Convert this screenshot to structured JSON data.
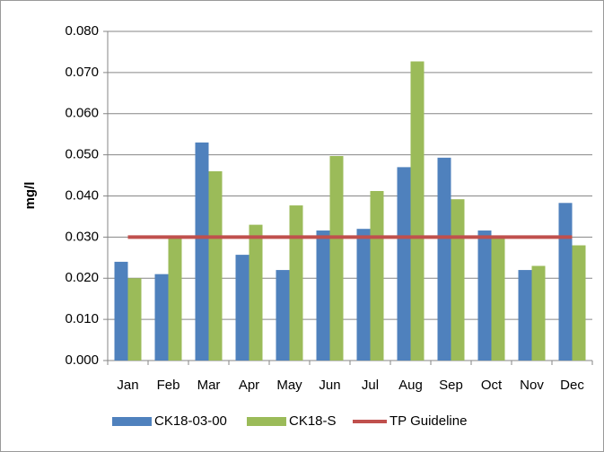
{
  "chart_data": {
    "type": "bar",
    "y_label": "mg/l",
    "categories": [
      "Jan",
      "Feb",
      "Mar",
      "Apr",
      "May",
      "Jun",
      "Jul",
      "Aug",
      "Sep",
      "Oct",
      "Nov",
      "Dec"
    ],
    "series": [
      {
        "name": "CK18-03-00",
        "color": "#4f81bd",
        "values": [
          0.024,
          0.021,
          0.053,
          0.0257,
          0.022,
          0.0316,
          0.032,
          0.047,
          0.0493,
          0.0316,
          0.022,
          0.0383
        ]
      },
      {
        "name": "CK18-S",
        "color": "#9bbb59",
        "values": [
          0.02,
          0.03,
          0.046,
          0.033,
          0.0377,
          0.0497,
          0.0412,
          0.0727,
          0.0392,
          0.03,
          0.023,
          0.028
        ]
      },
      {
        "name": "TP Guideline",
        "type": "line",
        "color": "#c0504d",
        "values": [
          0.03,
          0.03,
          0.03,
          0.03,
          0.03,
          0.03,
          0.03,
          0.03,
          0.03,
          0.03,
          0.03,
          0.03
        ]
      }
    ],
    "ylim": [
      0,
      0.08
    ],
    "yticks": [
      {
        "value": 0,
        "label": "0.000"
      },
      {
        "value": 0.01,
        "label": "0.010"
      },
      {
        "value": 0.02,
        "label": "0.020"
      },
      {
        "value": 0.03,
        "label": "0.030"
      },
      {
        "value": 0.04,
        "label": "0.040"
      },
      {
        "value": 0.05,
        "label": "0.050"
      },
      {
        "value": 0.06,
        "label": "0.060"
      },
      {
        "value": 0.07,
        "label": "0.070"
      },
      {
        "value": 0.08,
        "label": "0.080"
      }
    ],
    "grid": true,
    "legend": "bottom"
  }
}
